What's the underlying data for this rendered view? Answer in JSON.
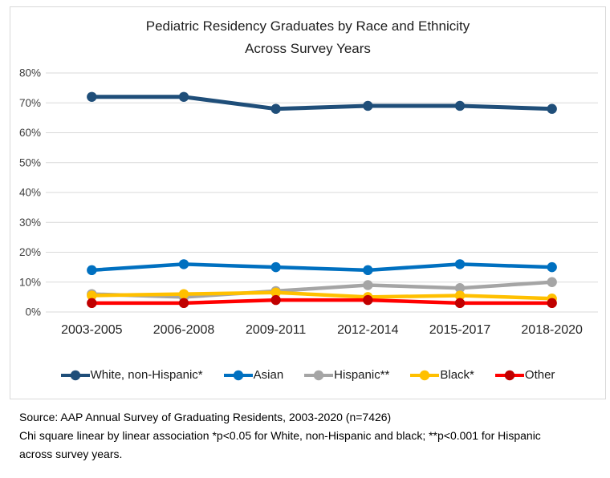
{
  "chart_data": {
    "type": "line",
    "title_line1": "Pediatric Residency Graduates by Race and Ethnicity",
    "title_line2": "Across Survey Years",
    "categories": [
      "2003-2005",
      "2006-2008",
      "2009-2011",
      "2012-2014",
      "2015-2017",
      "2018-2020"
    ],
    "series": [
      {
        "name": "White, non-Hispanic*",
        "color": "#1F4E79",
        "marker_color": "#1F4E79",
        "line_width": 5,
        "values": [
          72,
          72,
          68,
          69,
          69,
          68
        ]
      },
      {
        "name": "Asian",
        "color": "#0070C0",
        "marker_color": "#0070C0",
        "line_width": 4.5,
        "values": [
          14,
          16,
          15,
          14,
          16,
          15
        ]
      },
      {
        "name": "Hispanic**",
        "color": "#A5A5A5",
        "marker_color": "#A5A5A5",
        "line_width": 4.5,
        "values": [
          6,
          5,
          7,
          9,
          8,
          10
        ]
      },
      {
        "name": "Black*",
        "color": "#FFC000",
        "marker_color": "#FFC000",
        "line_width": 4.5,
        "values": [
          5.5,
          6,
          6.5,
          5,
          5.5,
          4.5
        ]
      },
      {
        "name": "Other",
        "color": "#FF0000",
        "marker_color": "#C00000",
        "line_width": 4.5,
        "values": [
          3,
          3,
          4,
          4,
          3,
          3
        ]
      }
    ],
    "y_ticks": [
      "0%",
      "10%",
      "20%",
      "30%",
      "40%",
      "50%",
      "60%",
      "70%",
      "80%"
    ],
    "ylim": [
      0,
      80
    ],
    "grid": true,
    "gridline_color": "#d9d9d9",
    "axis_label_color": "#404040",
    "category_label_color": "#262626",
    "legend_position": "bottom"
  },
  "footer": {
    "line1": "Source: AAP Annual Survey of Graduating Residents, 2003-2020 (n=7426)",
    "line2": "Chi square linear by linear association *p<0.05 for White, non-Hispanic and black; **p<0.001 for Hispanic",
    "line3": "across survey years."
  }
}
